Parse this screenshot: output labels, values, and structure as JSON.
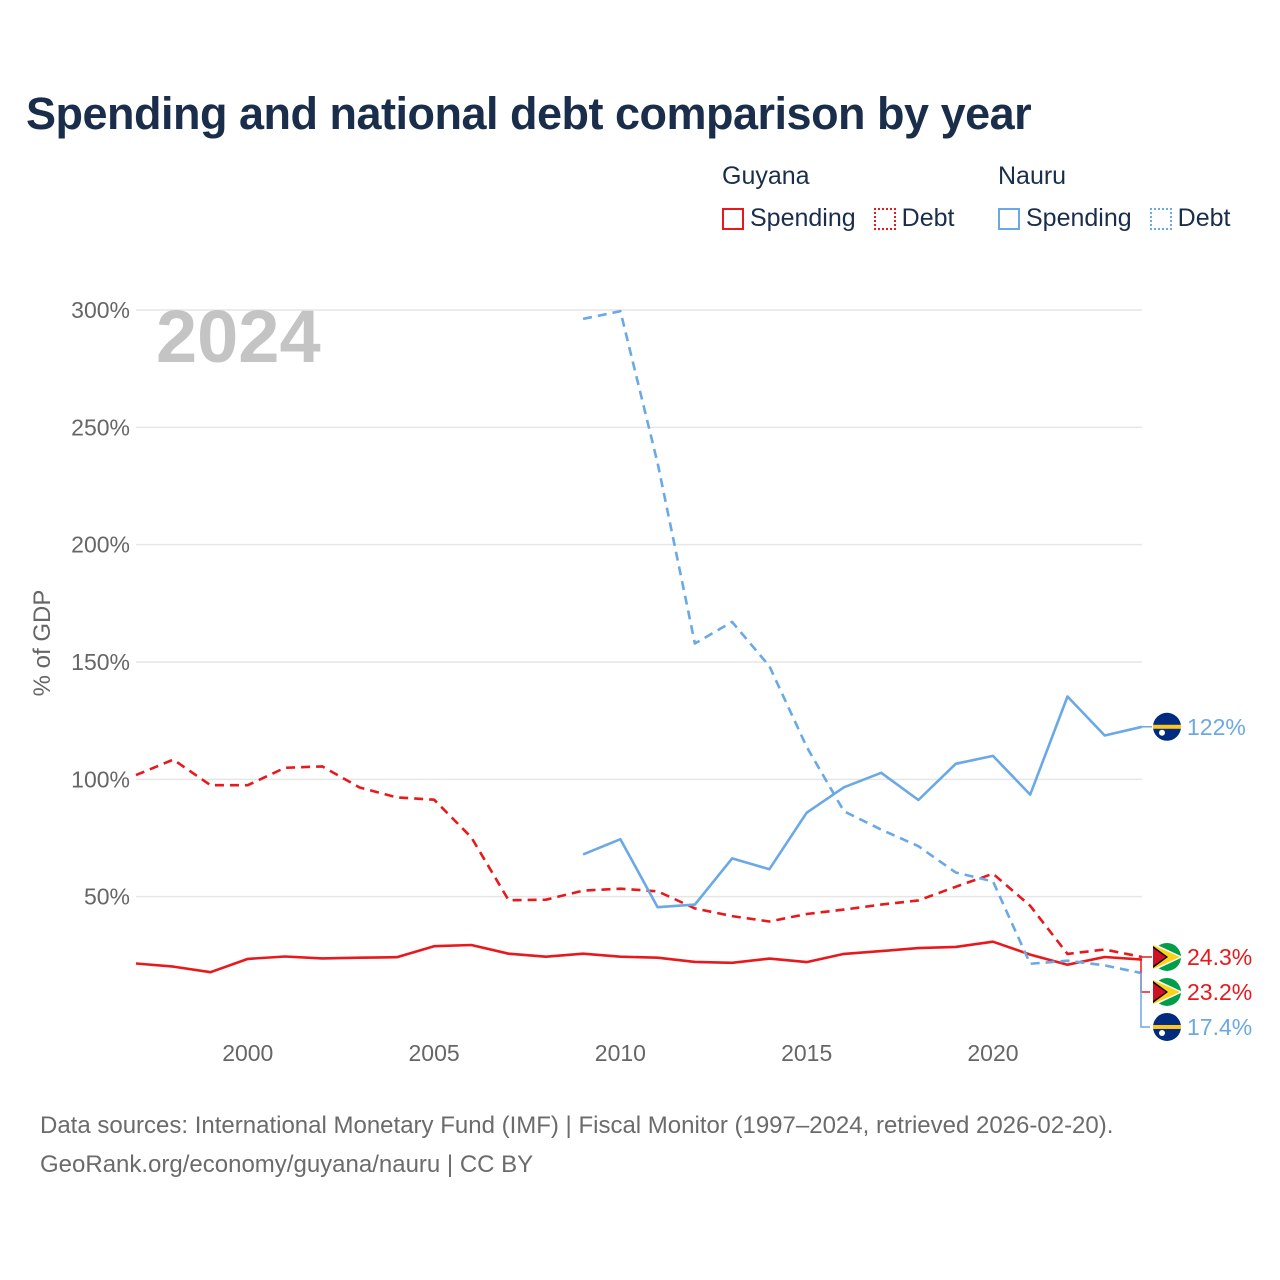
{
  "title": "Spending and national debt comparison by year",
  "legend": {
    "groups": [
      {
        "name": "Guyana",
        "items": [
          {
            "label": "Spending",
            "style": "solid",
            "color": "#e8191c"
          },
          {
            "label": "Debt",
            "style": "dotted",
            "color": "#e8191c"
          }
        ]
      },
      {
        "name": "Nauru",
        "items": [
          {
            "label": "Spending",
            "style": "solid",
            "color": "#6aa9e5"
          },
          {
            "label": "Debt",
            "style": "dotted",
            "color": "#6aa9e5"
          }
        ]
      }
    ]
  },
  "year_watermark": "2024",
  "colors": {
    "guyana": "#e8191c",
    "nauru": "#6aa9e5",
    "grid": "#e6e6e6",
    "axis_text": "#666666",
    "watermark": "#c4c4c4"
  },
  "chart_data": {
    "type": "line",
    "title": "Spending and national debt comparison by year",
    "xlabel": "",
    "ylabel": "% of GDP",
    "xlim": [
      1997,
      2024
    ],
    "ylim": [
      0,
      300
    ],
    "x_ticks": [
      2000,
      2005,
      2010,
      2015,
      2020
    ],
    "y_ticks": [
      50,
      100,
      150,
      200,
      250,
      300
    ],
    "y_tick_labels": [
      "50%",
      "100%",
      "150%",
      "200%",
      "250%",
      "300%"
    ],
    "series": [
      {
        "name": "Guyana Spending",
        "country": "Guyana",
        "metric": "Spending",
        "style": "solid",
        "color": "#e8191c",
        "x": [
          1997,
          1998,
          1999,
          2000,
          2001,
          2002,
          2003,
          2004,
          2005,
          2006,
          2007,
          2008,
          2009,
          2010,
          2011,
          2012,
          2013,
          2014,
          2015,
          2016,
          2017,
          2018,
          2019,
          2020,
          2021,
          2022,
          2023,
          2024
        ],
        "values": [
          21.5,
          20.2,
          17.8,
          23.5,
          24.5,
          23.7,
          24,
          24.2,
          28.9,
          29.4,
          25.7,
          24.4,
          25.7,
          24.4,
          24,
          22.2,
          21.8,
          23.6,
          22.1,
          25.6,
          26.8,
          28.1,
          28.6,
          30.8,
          25.3,
          21,
          24.3,
          23.2
        ]
      },
      {
        "name": "Guyana Debt",
        "country": "Guyana",
        "metric": "Debt",
        "style": "dashed",
        "color": "#e8191c",
        "x": [
          1997,
          1998,
          1999,
          2000,
          2001,
          2002,
          2003,
          2004,
          2005,
          2006,
          2007,
          2008,
          2009,
          2010,
          2011,
          2012,
          2013,
          2014,
          2015,
          2016,
          2017,
          2018,
          2019,
          2020,
          2021,
          2022,
          2023,
          2024
        ],
        "values": [
          101.8,
          108.4,
          97.5,
          97.5,
          104.9,
          105.5,
          96.5,
          92.3,
          91.3,
          75.3,
          48.5,
          48.7,
          52.6,
          53.4,
          52.3,
          45,
          41.7,
          39.4,
          42.6,
          44.5,
          46.6,
          48.4,
          54.2,
          59.8,
          46.1,
          25.6,
          27.5,
          24.3
        ]
      },
      {
        "name": "Nauru Spending",
        "country": "Nauru",
        "metric": "Spending",
        "style": "solid",
        "color": "#6aa9e5",
        "x": [
          2009,
          2010,
          2011,
          2012,
          2013,
          2014,
          2015,
          2016,
          2017,
          2018,
          2019,
          2020,
          2021,
          2022,
          2023,
          2024
        ],
        "values": [
          68,
          74.5,
          45.5,
          46.6,
          66.3,
          61.7,
          85.8,
          96.6,
          102.8,
          91.2,
          106.6,
          110,
          93.5,
          135.3,
          118.7,
          122.4
        ]
      },
      {
        "name": "Nauru Debt",
        "country": "Nauru",
        "metric": "Debt",
        "style": "dashed",
        "color": "#6aa9e5",
        "x": [
          2009,
          2010,
          2011,
          2012,
          2013,
          2014,
          2015,
          2016,
          2017,
          2018,
          2019,
          2020,
          2021,
          2022,
          2023,
          2024
        ],
        "values": [
          296.2,
          299.5,
          234.8,
          157.9,
          167.1,
          148.2,
          113.8,
          86.4,
          78.6,
          71.5,
          60.3,
          56.5,
          21.4,
          22.7,
          20.7,
          17.4
        ]
      }
    ],
    "end_labels": [
      {
        "series": "Nauru Spending",
        "country": "Nauru",
        "text": "122%"
      },
      {
        "series": "Guyana Debt",
        "country": "Guyana",
        "text": "24.3%"
      },
      {
        "series": "Guyana Spending",
        "country": "Guyana",
        "text": "23.2%"
      },
      {
        "series": "Nauru Debt",
        "country": "Nauru",
        "text": "17.4%"
      }
    ]
  },
  "footer": {
    "line1": "Data sources: International Monetary Fund (IMF) | Fiscal Monitor (1997–2024, retrieved 2026-02-20).",
    "line2": "GeoRank.org/economy/guyana/nauru | CC BY"
  }
}
